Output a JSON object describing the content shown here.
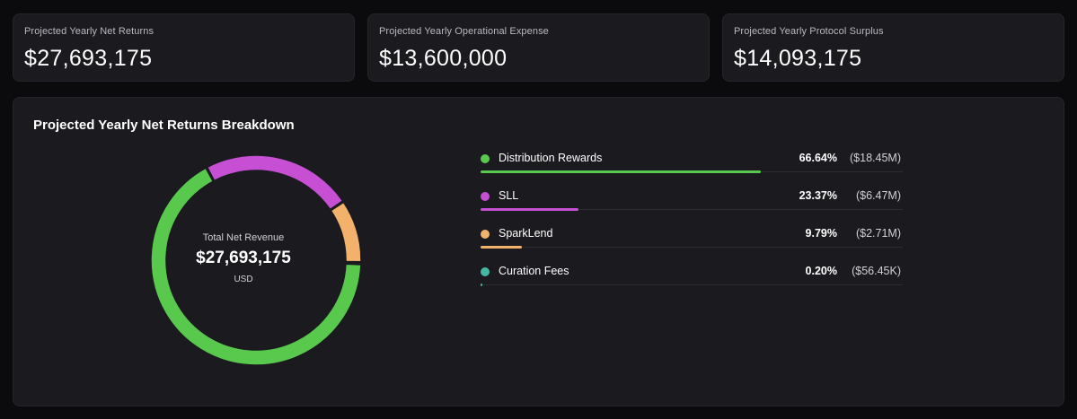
{
  "stats": [
    {
      "label": "Projected Yearly Net Returns",
      "value": "$27,693,175"
    },
    {
      "label": "Projected Yearly Operational Expense",
      "value": "$13,600,000"
    },
    {
      "label": "Projected Yearly Protocol Surplus",
      "value": "$14,093,175"
    }
  ],
  "breakdown": {
    "title": "Projected Yearly Net Returns Breakdown",
    "center_label": "Total Net Revenue",
    "center_value": "$27,693,175",
    "center_unit": "USD"
  },
  "chart_data": {
    "type": "pie",
    "title": "Projected Yearly Net Returns Breakdown",
    "categories": [
      "Distribution Rewards",
      "SLL",
      "SparkLend",
      "Curation Fees"
    ],
    "values": [
      66.64,
      23.37,
      9.79,
      0.2
    ],
    "value_labels": [
      "66.64%",
      "23.37%",
      "9.79%",
      "0.20%"
    ],
    "amount_labels": [
      "($18.45M)",
      "($6.47M)",
      "($2.71M)",
      "($56.45K)"
    ],
    "colors": [
      "#58c94d",
      "#c64fd3",
      "#f2b26b",
      "#43b9a4"
    ],
    "donut": true,
    "legend": "right"
  }
}
